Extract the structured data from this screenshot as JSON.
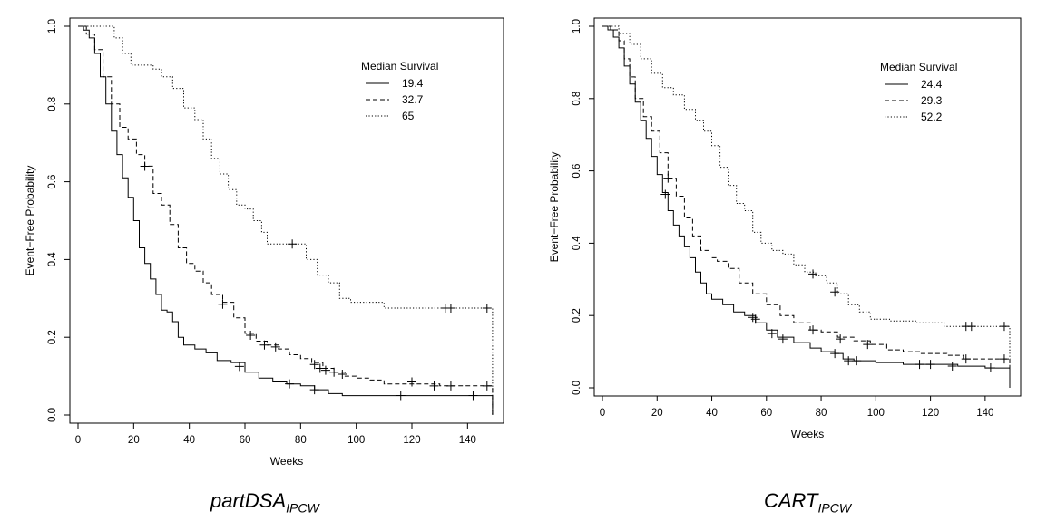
{
  "chart_data": [
    {
      "type": "line",
      "caption_main": "partDSA",
      "caption_sub": "IPCW",
      "xlabel": "Weeks",
      "ylabel": "Event−Free Probability",
      "xlim": [
        0,
        150
      ],
      "ylim": [
        0,
        1
      ],
      "xticks": [
        "0",
        "20",
        "40",
        "60",
        "80",
        "100",
        "120",
        "140"
      ],
      "yticks": [
        "0.0",
        "0.2",
        "0.4",
        "0.6",
        "0.8",
        "1.0"
      ],
      "xtick_values": [
        0,
        20,
        40,
        60,
        80,
        100,
        120,
        140
      ],
      "ytick_values": [
        0,
        0.2,
        0.4,
        0.6,
        0.8,
        1.0
      ],
      "grid": false,
      "legend_title": "Median Survival",
      "legend_position": "top-right",
      "series": [
        {
          "name": "19.4",
          "line_style": "solid",
          "points": [
            [
              0,
              1.0
            ],
            [
              2,
              0.99
            ],
            [
              4,
              0.97
            ],
            [
              6,
              0.93
            ],
            [
              8,
              0.87
            ],
            [
              10,
              0.8
            ],
            [
              12,
              0.73
            ],
            [
              14,
              0.67
            ],
            [
              16,
              0.61
            ],
            [
              18,
              0.56
            ],
            [
              20,
              0.5
            ],
            [
              22,
              0.43
            ],
            [
              24,
              0.39
            ],
            [
              26,
              0.35
            ],
            [
              28,
              0.31
            ],
            [
              30,
              0.27
            ],
            [
              32,
              0.265
            ],
            [
              34,
              0.24
            ],
            [
              36,
              0.2
            ],
            [
              38,
              0.18
            ],
            [
              42,
              0.17
            ],
            [
              46,
              0.16
            ],
            [
              50,
              0.14
            ],
            [
              55,
              0.135
            ],
            [
              60,
              0.11
            ],
            [
              65,
              0.095
            ],
            [
              70,
              0.085
            ],
            [
              75,
              0.08
            ],
            [
              80,
              0.075
            ],
            [
              85,
              0.065
            ],
            [
              90,
              0.055
            ],
            [
              95,
              0.05
            ],
            [
              100,
              0.05
            ],
            [
              110,
              0.05
            ],
            [
              120,
              0.05
            ],
            [
              130,
              0.05
            ],
            [
              149,
              0.05
            ],
            [
              149,
              0.0
            ]
          ],
          "censored": [
            [
              58,
              0.125
            ],
            [
              76,
              0.08
            ],
            [
              85,
              0.065
            ],
            [
              116,
              0.05
            ],
            [
              142,
              0.05
            ]
          ]
        },
        {
          "name": "32.7",
          "line_style": "dashed",
          "points": [
            [
              0,
              1.0
            ],
            [
              3,
              0.98
            ],
            [
              6,
              0.94
            ],
            [
              9,
              0.87
            ],
            [
              12,
              0.8
            ],
            [
              15,
              0.74
            ],
            [
              18,
              0.71
            ],
            [
              21,
              0.67
            ],
            [
              24,
              0.64
            ],
            [
              27,
              0.57
            ],
            [
              30,
              0.54
            ],
            [
              33,
              0.49
            ],
            [
              36,
              0.43
            ],
            [
              39,
              0.39
            ],
            [
              42,
              0.37
            ],
            [
              45,
              0.34
            ],
            [
              48,
              0.31
            ],
            [
              52,
              0.29
            ],
            [
              56,
              0.25
            ],
            [
              60,
              0.21
            ],
            [
              64,
              0.19
            ],
            [
              68,
              0.18
            ],
            [
              72,
              0.17
            ],
            [
              76,
              0.155
            ],
            [
              80,
              0.145
            ],
            [
              84,
              0.135
            ],
            [
              88,
              0.12
            ],
            [
              92,
              0.11
            ],
            [
              96,
              0.1
            ],
            [
              100,
              0.095
            ],
            [
              105,
              0.09
            ],
            [
              110,
              0.08
            ],
            [
              120,
              0.08
            ],
            [
              130,
              0.075
            ],
            [
              149,
              0.075
            ],
            [
              149,
              0.0
            ]
          ],
          "censored": [
            [
              24,
              0.64
            ],
            [
              52,
              0.285
            ],
            [
              62,
              0.205
            ],
            [
              67,
              0.18
            ],
            [
              71,
              0.175
            ],
            [
              85,
              0.13
            ],
            [
              87,
              0.12
            ],
            [
              89,
              0.115
            ],
            [
              92,
              0.11
            ],
            [
              95,
              0.105
            ],
            [
              120,
              0.085
            ],
            [
              128,
              0.075
            ],
            [
              134,
              0.075
            ],
            [
              147,
              0.075
            ]
          ]
        },
        {
          "name": "65",
          "line_style": "dotted",
          "points": [
            [
              0,
              1.0
            ],
            [
              10,
              1.0
            ],
            [
              13,
              0.97
            ],
            [
              16,
              0.93
            ],
            [
              19,
              0.9
            ],
            [
              24,
              0.9
            ],
            [
              27,
              0.89
            ],
            [
              30,
              0.87
            ],
            [
              34,
              0.84
            ],
            [
              38,
              0.79
            ],
            [
              42,
              0.76
            ],
            [
              45,
              0.71
            ],
            [
              48,
              0.66
            ],
            [
              51,
              0.62
            ],
            [
              54,
              0.58
            ],
            [
              57,
              0.54
            ],
            [
              60,
              0.53
            ],
            [
              63,
              0.5
            ],
            [
              66,
              0.47
            ],
            [
              68,
              0.44
            ],
            [
              72,
              0.44
            ],
            [
              78,
              0.44
            ],
            [
              82,
              0.4
            ],
            [
              86,
              0.36
            ],
            [
              90,
              0.34
            ],
            [
              94,
              0.3
            ],
            [
              98,
              0.29
            ],
            [
              104,
              0.29
            ],
            [
              110,
              0.275
            ],
            [
              149,
              0.275
            ],
            [
              149,
              0.0
            ]
          ],
          "censored": [
            [
              77,
              0.44
            ],
            [
              132,
              0.275
            ],
            [
              134,
              0.275
            ],
            [
              147,
              0.275
            ]
          ]
        }
      ]
    },
    {
      "type": "line",
      "caption_main": "CART",
      "caption_sub": "IPCW",
      "xlabel": "Weeks",
      "ylabel": "Event−Free Probability",
      "xlim": [
        0,
        150
      ],
      "ylim": [
        0,
        1
      ],
      "xticks": [
        "0",
        "20",
        "40",
        "60",
        "80",
        "100",
        "120",
        "140"
      ],
      "yticks": [
        "0.0",
        "0.2",
        "0.4",
        "0.6",
        "0.8",
        "1.0"
      ],
      "xtick_values": [
        0,
        20,
        40,
        60,
        80,
        100,
        120,
        140
      ],
      "ytick_values": [
        0,
        0.2,
        0.4,
        0.6,
        0.8,
        1.0
      ],
      "grid": false,
      "legend_title": "Median Survival",
      "legend_position": "top-right",
      "series": [
        {
          "name": "24.4",
          "line_style": "solid",
          "points": [
            [
              0,
              1.0
            ],
            [
              2,
              0.99
            ],
            [
              4,
              0.97
            ],
            [
              6,
              0.94
            ],
            [
              8,
              0.89
            ],
            [
              10,
              0.84
            ],
            [
              12,
              0.79
            ],
            [
              14,
              0.74
            ],
            [
              16,
              0.69
            ],
            [
              18,
              0.64
            ],
            [
              20,
              0.59
            ],
            [
              22,
              0.54
            ],
            [
              24,
              0.49
            ],
            [
              26,
              0.45
            ],
            [
              28,
              0.42
            ],
            [
              30,
              0.39
            ],
            [
              32,
              0.36
            ],
            [
              34,
              0.32
            ],
            [
              36,
              0.29
            ],
            [
              38,
              0.26
            ],
            [
              40,
              0.245
            ],
            [
              44,
              0.23
            ],
            [
              48,
              0.21
            ],
            [
              52,
              0.2
            ],
            [
              56,
              0.18
            ],
            [
              60,
              0.16
            ],
            [
              64,
              0.14
            ],
            [
              70,
              0.125
            ],
            [
              76,
              0.11
            ],
            [
              80,
              0.1
            ],
            [
              85,
              0.095
            ],
            [
              88,
              0.08
            ],
            [
              92,
              0.075
            ],
            [
              100,
              0.07
            ],
            [
              110,
              0.065
            ],
            [
              120,
              0.065
            ],
            [
              130,
              0.06
            ],
            [
              140,
              0.055
            ],
            [
              149,
              0.055
            ],
            [
              149,
              0.0
            ]
          ],
          "censored": [
            [
              23,
              0.535
            ],
            [
              56,
              0.19
            ],
            [
              62,
              0.15
            ],
            [
              66,
              0.135
            ],
            [
              85,
              0.095
            ],
            [
              90,
              0.075
            ],
            [
              93,
              0.075
            ],
            [
              116,
              0.065
            ],
            [
              120,
              0.065
            ],
            [
              128,
              0.06
            ],
            [
              142,
              0.055
            ]
          ]
        },
        {
          "name": "29.3",
          "line_style": "dashed",
          "points": [
            [
              0,
              1.0
            ],
            [
              3,
              0.99
            ],
            [
              6,
              0.96
            ],
            [
              8,
              0.91
            ],
            [
              10,
              0.86
            ],
            [
              12,
              0.8
            ],
            [
              15,
              0.75
            ],
            [
              18,
              0.71
            ],
            [
              21,
              0.65
            ],
            [
              24,
              0.58
            ],
            [
              27,
              0.53
            ],
            [
              30,
              0.47
            ],
            [
              33,
              0.42
            ],
            [
              36,
              0.38
            ],
            [
              39,
              0.36
            ],
            [
              42,
              0.35
            ],
            [
              46,
              0.33
            ],
            [
              50,
              0.29
            ],
            [
              55,
              0.26
            ],
            [
              60,
              0.23
            ],
            [
              65,
              0.2
            ],
            [
              70,
              0.18
            ],
            [
              76,
              0.16
            ],
            [
              80,
              0.155
            ],
            [
              86,
              0.14
            ],
            [
              92,
              0.13
            ],
            [
              98,
              0.12
            ],
            [
              104,
              0.105
            ],
            [
              110,
              0.1
            ],
            [
              116,
              0.095
            ],
            [
              126,
              0.09
            ],
            [
              132,
              0.08
            ],
            [
              149,
              0.08
            ],
            [
              149,
              0.0
            ]
          ],
          "censored": [
            [
              24,
              0.58
            ],
            [
              55,
              0.195
            ],
            [
              77,
              0.16
            ],
            [
              87,
              0.135
            ],
            [
              97,
              0.12
            ],
            [
              133,
              0.08
            ],
            [
              147,
              0.08
            ]
          ]
        },
        {
          "name": "52.2",
          "line_style": "dotted",
          "points": [
            [
              0,
              1.0
            ],
            [
              6,
              0.98
            ],
            [
              10,
              0.95
            ],
            [
              14,
              0.91
            ],
            [
              18,
              0.87
            ],
            [
              22,
              0.83
            ],
            [
              26,
              0.81
            ],
            [
              30,
              0.77
            ],
            [
              34,
              0.74
            ],
            [
              37,
              0.71
            ],
            [
              40,
              0.67
            ],
            [
              43,
              0.61
            ],
            [
              46,
              0.56
            ],
            [
              49,
              0.51
            ],
            [
              52,
              0.49
            ],
            [
              55,
              0.43
            ],
            [
              58,
              0.4
            ],
            [
              62,
              0.38
            ],
            [
              66,
              0.37
            ],
            [
              70,
              0.34
            ],
            [
              74,
              0.32
            ],
            [
              78,
              0.31
            ],
            [
              82,
              0.29
            ],
            [
              86,
              0.26
            ],
            [
              90,
              0.23
            ],
            [
              94,
              0.21
            ],
            [
              98,
              0.19
            ],
            [
              105,
              0.185
            ],
            [
              115,
              0.18
            ],
            [
              125,
              0.17
            ],
            [
              149,
              0.17
            ],
            [
              149,
              0.0
            ]
          ],
          "censored": [
            [
              77,
              0.315
            ],
            [
              85,
              0.265
            ],
            [
              133,
              0.17
            ],
            [
              135,
              0.17
            ],
            [
              147,
              0.17
            ]
          ]
        }
      ]
    }
  ]
}
